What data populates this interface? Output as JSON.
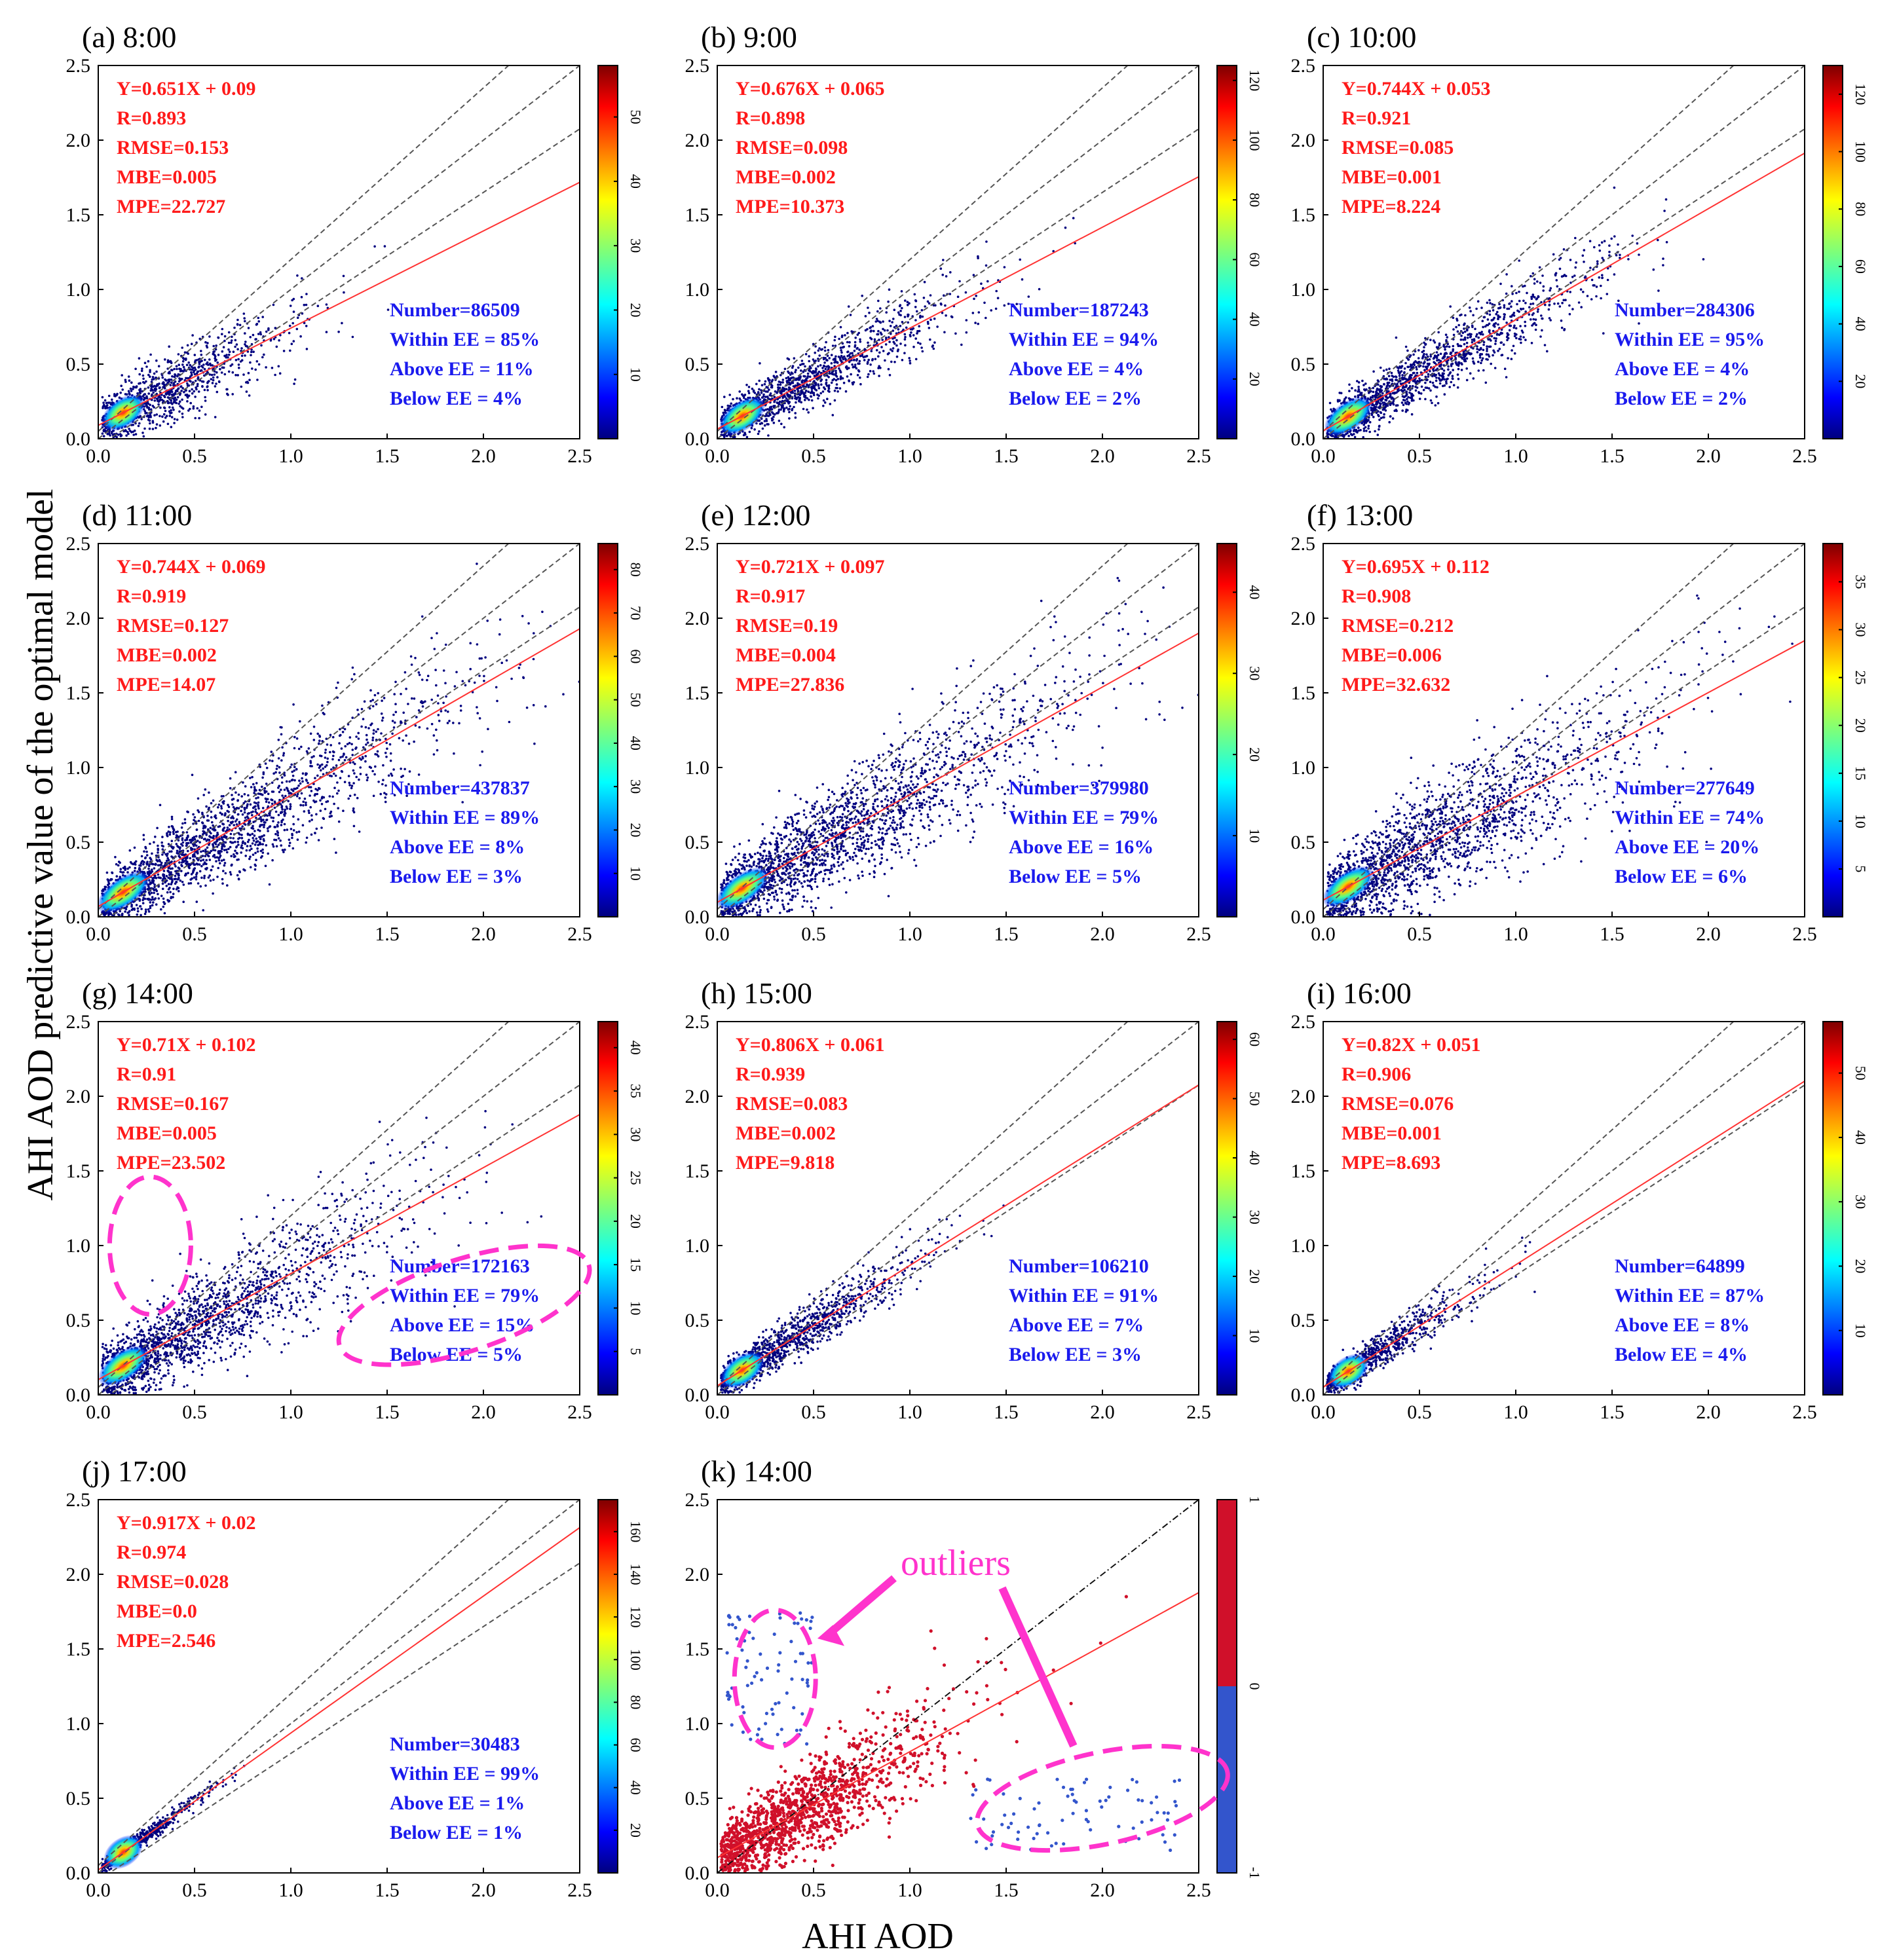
{
  "figure": {
    "ylabel": "AHI AOD predictive value of the optimal model",
    "xlabel": "AHI AOD"
  },
  "chart_data": [
    {
      "id": "a",
      "type": "scatter",
      "title": "(a) 8:00",
      "xlim": [
        0,
        2.5
      ],
      "ylim": [
        0,
        2.5
      ],
      "xticks": [
        "0.0",
        "0.5",
        "1.0",
        "1.5",
        "2.0",
        "2.5"
      ],
      "yticks": [
        "0.0",
        "0.5",
        "1.0",
        "1.5",
        "2.0",
        "2.5"
      ],
      "fit": {
        "slope": 0.651,
        "intercept": 0.09
      },
      "spread": 0.2,
      "density": 0.8,
      "stats_red": [
        "Y=0.651X + 0.09",
        "R=0.893",
        "RMSE=0.153",
        "MBE=0.005",
        "MPE=22.727"
      ],
      "stats_blue": [
        "Number=86509",
        "Within EE = 85%",
        "Above EE = 11%",
        "Below EE = 4%"
      ],
      "colorbar": {
        "ticks": [
          10,
          20,
          30,
          40,
          50
        ],
        "max": 58
      }
    },
    {
      "id": "b",
      "type": "scatter",
      "title": "(b) 9:00",
      "xlim": [
        0,
        2.5
      ],
      "ylim": [
        0,
        2.5
      ],
      "xticks": [
        "0.0",
        "0.5",
        "1.0",
        "1.5",
        "2.0",
        "2.5"
      ],
      "yticks": [
        "0.0",
        "0.5",
        "1.0",
        "1.5",
        "2.0",
        "2.5"
      ],
      "fit": {
        "slope": 0.676,
        "intercept": 0.065
      },
      "spread": 0.17,
      "density": 1.0,
      "stats_red": [
        "Y=0.676X + 0.065",
        "R=0.898",
        "RMSE=0.098",
        "MBE=0.002",
        "MPE=10.373"
      ],
      "stats_blue": [
        "Number=187243",
        "Within EE = 94%",
        "Above EE = 4%",
        "Below EE = 2%"
      ],
      "colorbar": {
        "ticks": [
          20,
          40,
          60,
          80,
          100,
          120
        ],
        "max": 125
      }
    },
    {
      "id": "c",
      "type": "scatter",
      "title": "(c) 10:00",
      "xlim": [
        0,
        2.5
      ],
      "ylim": [
        0,
        2.5
      ],
      "xticks": [
        "0.0",
        "0.5",
        "1.0",
        "1.5",
        "2.0",
        "2.5"
      ],
      "yticks": [
        "0.0",
        "0.5",
        "1.0",
        "1.5",
        "2.0",
        "2.5"
      ],
      "fit": {
        "slope": 0.744,
        "intercept": 0.053
      },
      "spread": 0.17,
      "density": 1.15,
      "stats_red": [
        "Y=0.744X + 0.053",
        "R=0.921",
        "RMSE=0.085",
        "MBE=0.001",
        "MPE=8.224"
      ],
      "stats_blue": [
        "Number=284306",
        "Within EE = 95%",
        "Above EE = 4%",
        "Below EE = 2%"
      ],
      "colorbar": {
        "ticks": [
          20,
          40,
          60,
          80,
          100,
          120
        ],
        "max": 130
      }
    },
    {
      "id": "d",
      "type": "scatter",
      "title": "(d) 11:00",
      "xlim": [
        0,
        2.5
      ],
      "ylim": [
        0,
        2.5
      ],
      "xticks": [
        "0.0",
        "0.5",
        "1.0",
        "1.5",
        "2.0",
        "2.5"
      ],
      "yticks": [
        "0.0",
        "0.5",
        "1.0",
        "1.5",
        "2.0",
        "2.5"
      ],
      "fit": {
        "slope": 0.744,
        "intercept": 0.069
      },
      "spread": 0.24,
      "density": 1.5,
      "stats_red": [
        "Y=0.744X + 0.069",
        "R=0.919",
        "RMSE=0.127",
        "MBE=0.002",
        "MPE=14.07"
      ],
      "stats_blue": [
        "Number=437837",
        "Within EE = 89%",
        "Above EE = 8%",
        "Below EE = 3%"
      ],
      "colorbar": {
        "ticks": [
          10,
          20,
          30,
          40,
          50,
          60,
          70,
          80
        ],
        "max": 86
      }
    },
    {
      "id": "e",
      "type": "scatter",
      "title": "(e) 12:00",
      "xlim": [
        0,
        2.5
      ],
      "ylim": [
        0,
        2.5
      ],
      "xticks": [
        "0.0",
        "0.5",
        "1.0",
        "1.5",
        "2.0",
        "2.5"
      ],
      "yticks": [
        "0.0",
        "0.5",
        "1.0",
        "1.5",
        "2.0",
        "2.5"
      ],
      "fit": {
        "slope": 0.721,
        "intercept": 0.097
      },
      "spread": 0.28,
      "density": 1.5,
      "stats_red": [
        "Y=0.721X + 0.097",
        "R=0.917",
        "RMSE=0.19",
        "MBE=0.004",
        "MPE=27.836"
      ],
      "stats_blue": [
        "Number=379980",
        "Within EE = 79%",
        "Above EE = 16%",
        "Below EE = 5%"
      ],
      "colorbar": {
        "ticks": [
          10,
          20,
          30,
          40
        ],
        "max": 46
      }
    },
    {
      "id": "f",
      "type": "scatter",
      "title": "(f) 13:00",
      "xlim": [
        0,
        2.5
      ],
      "ylim": [
        0,
        2.5
      ],
      "xticks": [
        "0.0",
        "0.5",
        "1.0",
        "1.5",
        "2.0",
        "2.5"
      ],
      "yticks": [
        "0.0",
        "0.5",
        "1.0",
        "1.5",
        "2.0",
        "2.5"
      ],
      "fit": {
        "slope": 0.695,
        "intercept": 0.112
      },
      "spread": 0.3,
      "density": 1.4,
      "stats_red": [
        "Y=0.695X + 0.112",
        "R=0.908",
        "RMSE=0.212",
        "MBE=0.006",
        "MPE=32.632"
      ],
      "stats_blue": [
        "Number=277649",
        "Within EE = 74%",
        "Above EE = 20%",
        "Below EE = 6%"
      ],
      "colorbar": {
        "ticks": [
          5,
          10,
          15,
          20,
          25,
          30,
          35
        ],
        "max": 39
      }
    },
    {
      "id": "g",
      "type": "scatter",
      "title": "(g) 14:00",
      "xlim": [
        0,
        2.5
      ],
      "ylim": [
        0,
        2.5
      ],
      "xticks": [
        "0.0",
        "0.5",
        "1.0",
        "1.5",
        "2.0",
        "2.5"
      ],
      "yticks": [
        "0.0",
        "0.5",
        "1.0",
        "1.5",
        "2.0",
        "2.5"
      ],
      "fit": {
        "slope": 0.71,
        "intercept": 0.102
      },
      "spread": 0.26,
      "density": 1.3,
      "stats_red": [
        "Y=0.71X + 0.102",
        "R=0.91",
        "RMSE=0.167",
        "MBE=0.005",
        "MPE=23.502"
      ],
      "stats_blue": [
        "Number=172163",
        "Within EE = 79%",
        "Above EE = 15%",
        "Below EE = 5%"
      ],
      "colorbar": {
        "ticks": [
          5,
          10,
          15,
          20,
          25,
          30,
          35,
          40
        ],
        "max": 43
      }
    },
    {
      "id": "h",
      "type": "scatter",
      "title": "(h) 15:00",
      "xlim": [
        0,
        2.5
      ],
      "ylim": [
        0,
        2.5
      ],
      "xticks": [
        "0.0",
        "0.5",
        "1.0",
        "1.5",
        "2.0",
        "2.5"
      ],
      "yticks": [
        "0.0",
        "0.5",
        "1.0",
        "1.5",
        "2.0",
        "2.5"
      ],
      "fit": {
        "slope": 0.806,
        "intercept": 0.061
      },
      "spread": 0.14,
      "density": 0.85,
      "stats_red": [
        "Y=0.806X + 0.061",
        "R=0.939",
        "RMSE=0.083",
        "MBE=0.002",
        "MPE=9.818"
      ],
      "stats_blue": [
        "Number=106210",
        "Within EE = 91%",
        "Above EE = 7%",
        "Below EE = 3%"
      ],
      "colorbar": {
        "ticks": [
          10,
          20,
          30,
          40,
          50,
          60
        ],
        "max": 63
      }
    },
    {
      "id": "i",
      "type": "scatter",
      "title": "(i) 16:00",
      "xlim": [
        0,
        2.5
      ],
      "ylim": [
        0,
        2.5
      ],
      "xticks": [
        "0.0",
        "0.5",
        "1.0",
        "1.5",
        "2.0",
        "2.5"
      ],
      "yticks": [
        "0.0",
        "0.5",
        "1.0",
        "1.5",
        "2.0",
        "2.5"
      ],
      "fit": {
        "slope": 0.82,
        "intercept": 0.051
      },
      "spread": 0.12,
      "density": 0.6,
      "stats_red": [
        "Y=0.82X + 0.051",
        "R=0.906",
        "RMSE=0.076",
        "MBE=0.001",
        "MPE=8.693"
      ],
      "stats_blue": [
        "Number=64899",
        "Within EE = 87%",
        "Above EE = 8%",
        "Below EE = 4%"
      ],
      "colorbar": {
        "ticks": [
          10,
          20,
          30,
          40,
          50
        ],
        "max": 58
      }
    },
    {
      "id": "j",
      "type": "scatter",
      "title": "(j) 17:00",
      "xlim": [
        0,
        2.5
      ],
      "ylim": [
        0,
        2.5
      ],
      "xticks": [
        "0.0",
        "0.5",
        "1.0",
        "1.5",
        "2.0",
        "2.5"
      ],
      "yticks": [
        "0.0",
        "0.5",
        "1.0",
        "1.5",
        "2.0",
        "2.5"
      ],
      "fit": {
        "slope": 0.917,
        "intercept": 0.02
      },
      "spread": 0.05,
      "density": 0.45,
      "stats_red": [
        "Y=0.917X + 0.02",
        "R=0.974",
        "RMSE=0.028",
        "MBE=0.0",
        "MPE=2.546"
      ],
      "stats_blue": [
        "Number=30483",
        "Within EE = 99%",
        "Above EE = 1%",
        "Below EE = 1%"
      ],
      "colorbar": {
        "ticks": [
          20,
          40,
          60,
          80,
          100,
          120,
          140,
          160
        ],
        "max": 175
      }
    },
    {
      "id": "k",
      "type": "scatter",
      "title": "(k) 14:00",
      "xlim": [
        0,
        2.5
      ],
      "ylim": [
        0,
        2.5
      ],
      "xticks": [
        "0.0",
        "0.5",
        "1.0",
        "1.5",
        "2.0",
        "2.5"
      ],
      "yticks": [
        "0.0",
        "0.5",
        "1.0",
        "1.5",
        "2.0",
        "2.5"
      ],
      "fit": {
        "slope": 0.71,
        "intercept": 0.102
      },
      "spread": 0.26,
      "density": 1.0,
      "stats_red": [],
      "stats_blue": [],
      "categorical_colorbar": {
        "ticks": [
          "-1",
          "0",
          "1"
        ],
        "colors": [
          "#3355cc",
          "#d0102a"
        ]
      },
      "annotation": "outliers"
    }
  ],
  "colors": {
    "stat_red": "#ff1a1a",
    "stat_blue": "#1a1aee",
    "highlight": "#ff33cc",
    "fit_line": "#ff3333",
    "ee_line": "#555555",
    "inlier": "#d0102a",
    "outlier": "#3355cc"
  }
}
